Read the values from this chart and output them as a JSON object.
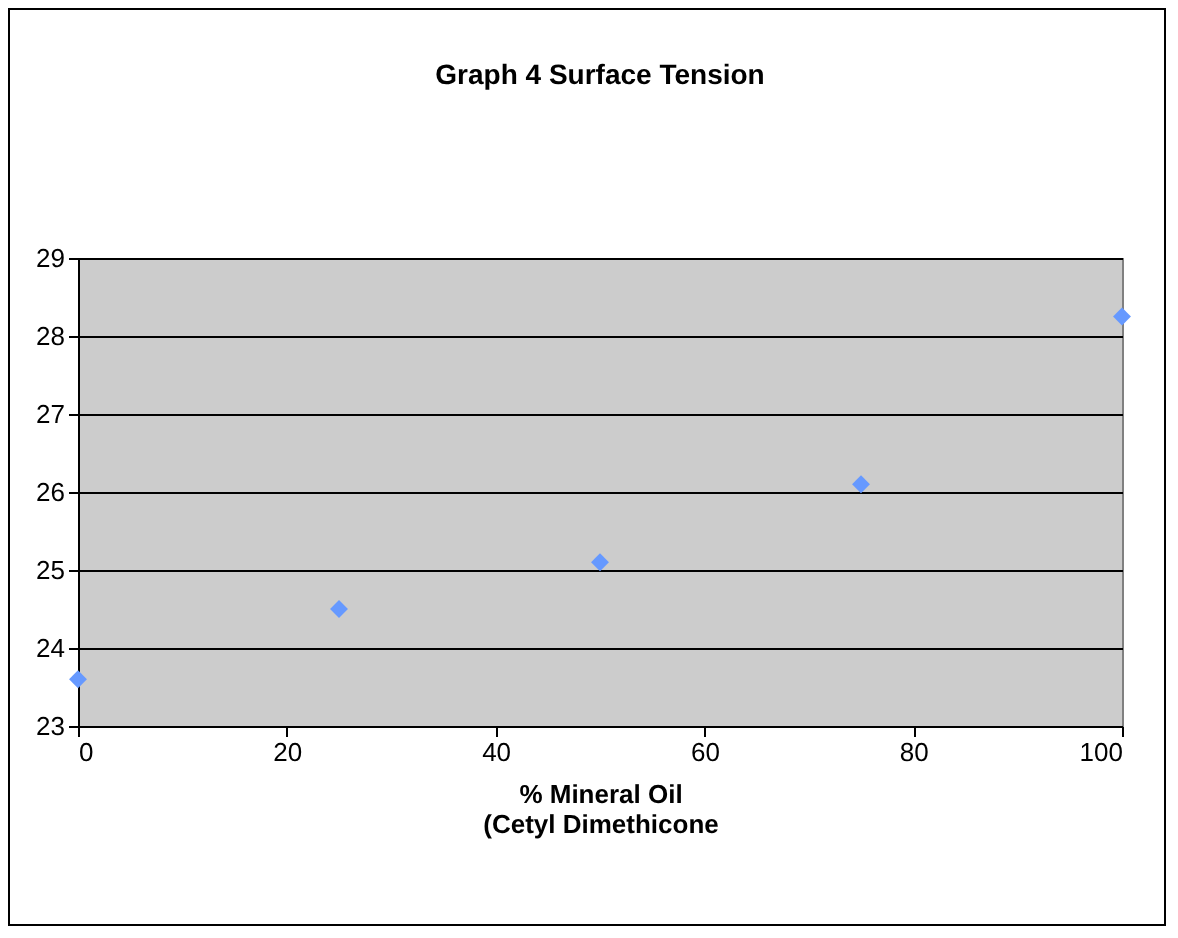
{
  "chart_data": {
    "type": "scatter",
    "title": "Graph 4   Surface Tension",
    "xlabel": [
      "% Mineral Oil",
      "(Cetyl Dimethicone"
    ],
    "x": [
      0,
      25,
      50,
      75,
      100
    ],
    "series": [
      {
        "color": "#6699ff",
        "values": [
          23.6,
          24.5,
          25.1,
          26.1,
          28.25
        ]
      }
    ],
    "xlim": [
      0,
      100
    ],
    "xticks": [
      0,
      20,
      40,
      60,
      80,
      100
    ],
    "ylim": [
      23,
      29
    ],
    "yticks": [
      23,
      24,
      25,
      26,
      27,
      28,
      29
    ],
    "grid": "y",
    "marker": "diamond",
    "legend": false
  }
}
